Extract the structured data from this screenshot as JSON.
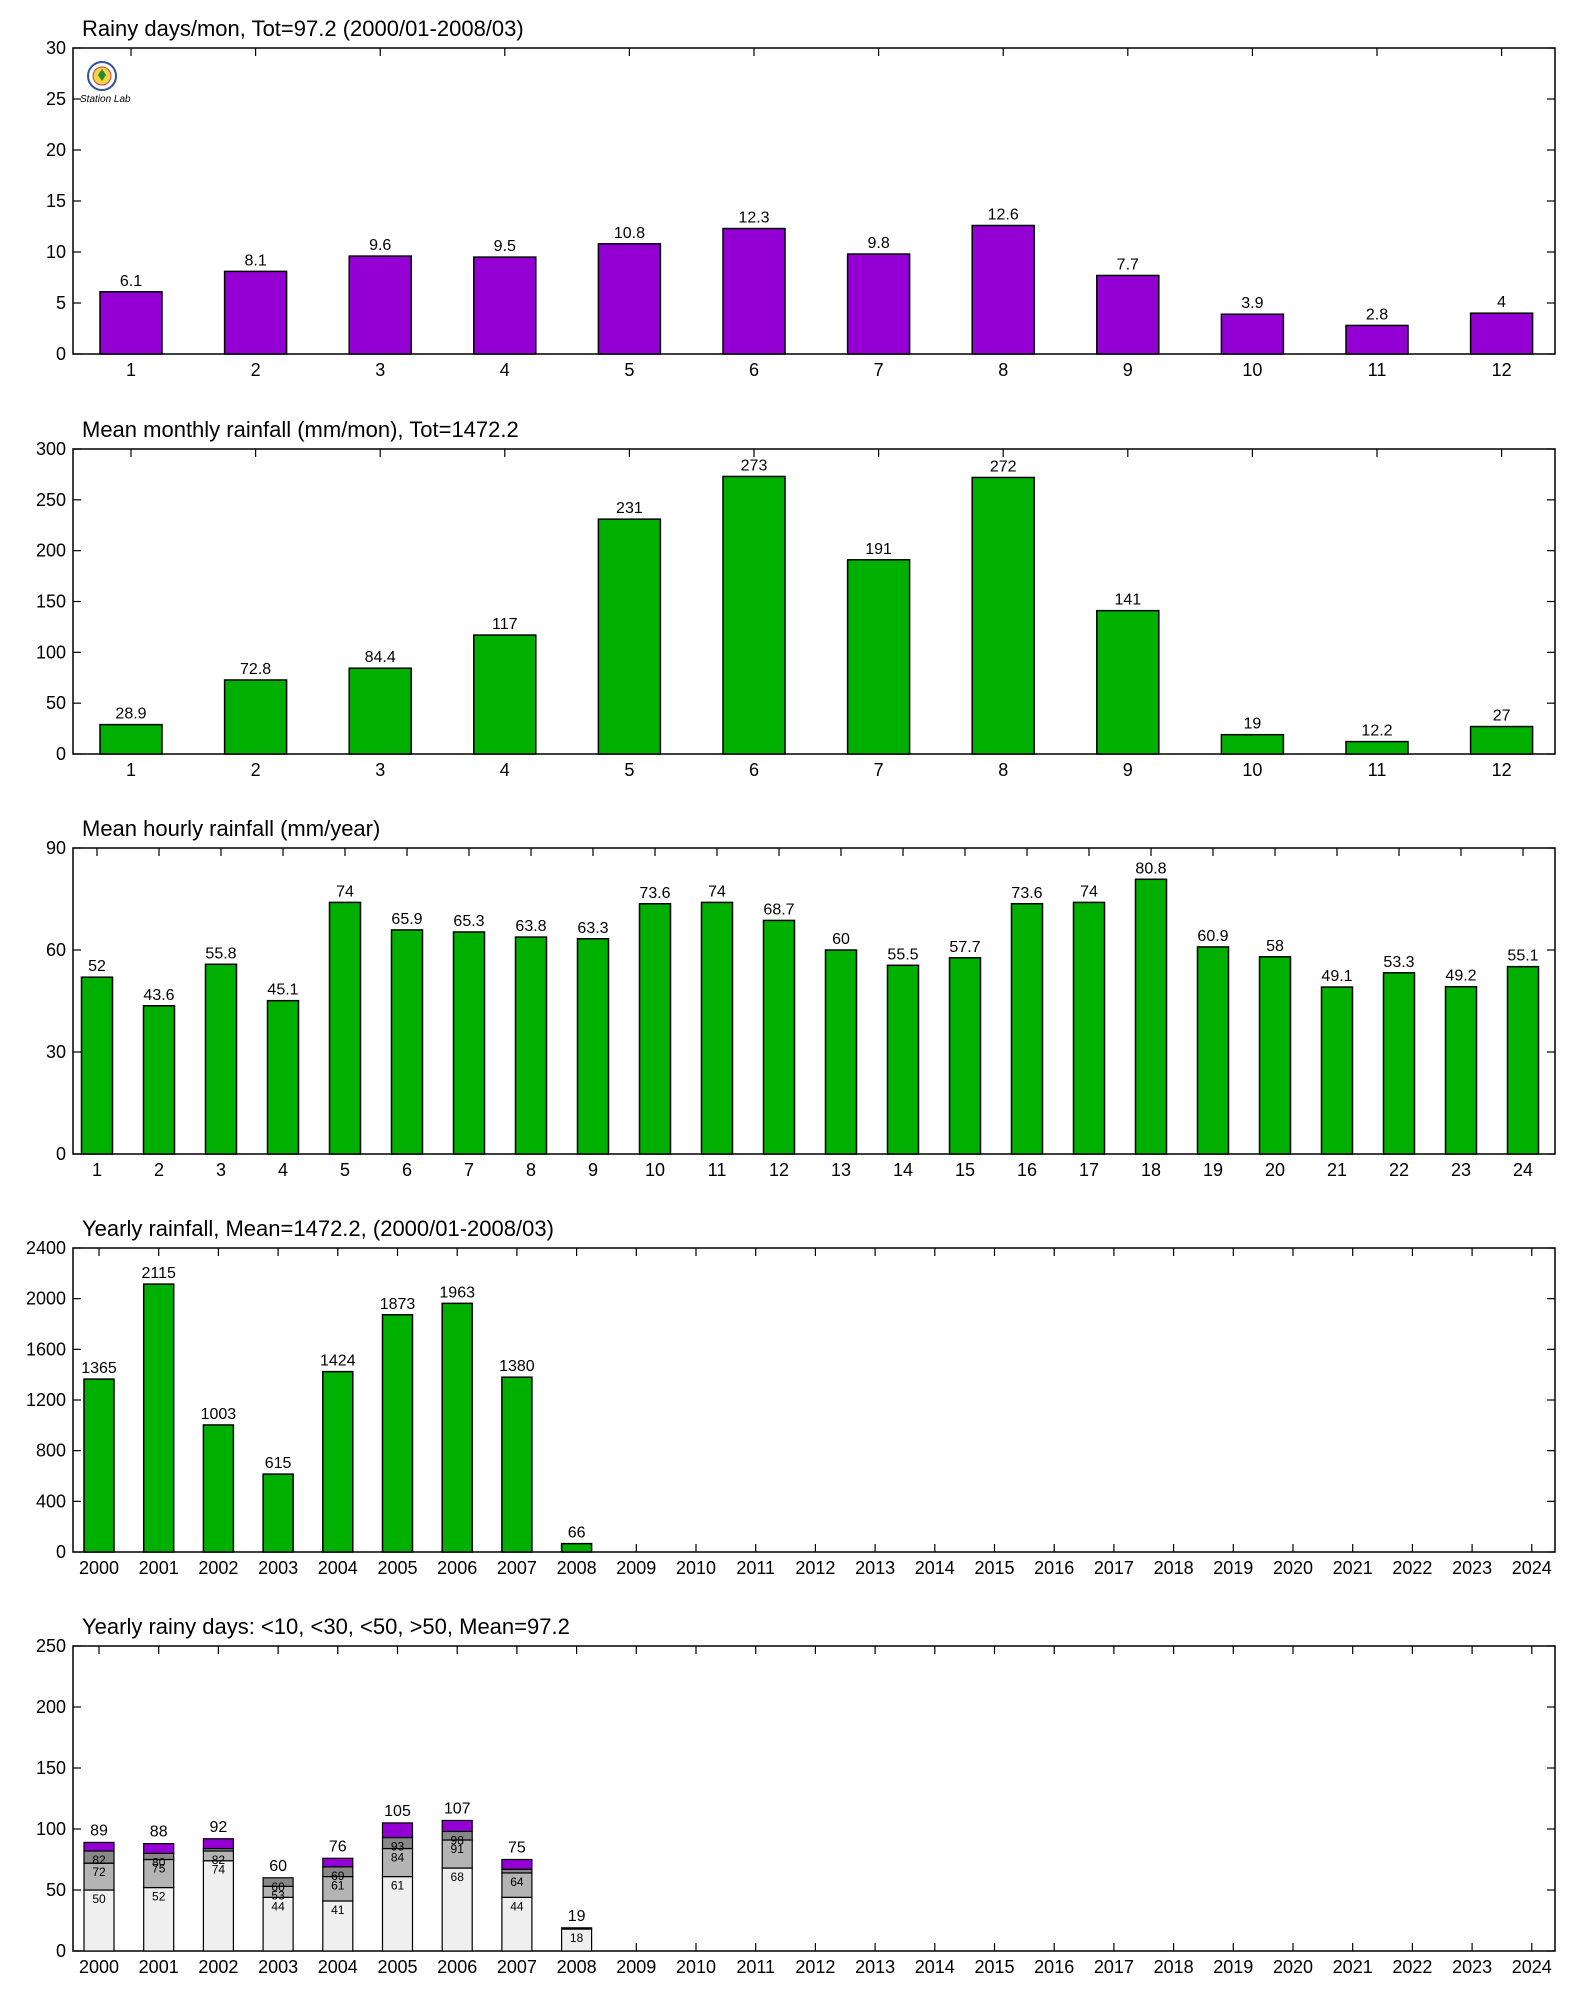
{
  "colors": {
    "purple": "#9400d3",
    "green": "#00b000",
    "lightgray": "#efefef",
    "midgray": "#b4b4b4",
    "darkgray": "#888888"
  },
  "logo": {
    "text": "Station Lab"
  },
  "chart_data": [
    {
      "type": "bar",
      "title": "Rainy days/mon, Tot=97.2 (2000/01-2008/03)",
      "categories": [
        "1",
        "2",
        "3",
        "4",
        "5",
        "6",
        "7",
        "8",
        "9",
        "10",
        "11",
        "12"
      ],
      "values": [
        6.1,
        8.1,
        9.6,
        9.5,
        10.8,
        12.3,
        9.8,
        12.6,
        7.7,
        3.9,
        2.8,
        4
      ],
      "labels": [
        "6.1",
        "8.1",
        "9.6",
        "9.5",
        "10.8",
        "12.3",
        "9.8",
        "12.6",
        "7.7",
        "3.9",
        "2.8",
        "4"
      ],
      "ylim": [
        0,
        30
      ],
      "yticks": [
        0,
        5,
        10,
        15,
        20,
        25,
        30
      ],
      "color": "purple"
    },
    {
      "type": "bar",
      "title": "Mean monthly rainfall (mm/mon), Tot=1472.2",
      "categories": [
        "1",
        "2",
        "3",
        "4",
        "5",
        "6",
        "7",
        "8",
        "9",
        "10",
        "11",
        "12"
      ],
      "values": [
        28.9,
        72.8,
        84.4,
        117,
        231,
        273,
        191,
        272,
        141,
        19,
        12.2,
        27
      ],
      "labels": [
        "28.9",
        "72.8",
        "84.4",
        "117",
        "231",
        "273",
        "191",
        "272",
        "141",
        "19",
        "12.2",
        "27"
      ],
      "ylim": [
        0,
        300
      ],
      "yticks": [
        0,
        50,
        100,
        150,
        200,
        250,
        300
      ],
      "color": "green"
    },
    {
      "type": "bar",
      "title": "Mean hourly rainfall (mm/year)",
      "categories": [
        "1",
        "2",
        "3",
        "4",
        "5",
        "6",
        "7",
        "8",
        "9",
        "10",
        "11",
        "12",
        "13",
        "14",
        "15",
        "16",
        "17",
        "18",
        "19",
        "20",
        "21",
        "22",
        "23",
        "24"
      ],
      "values": [
        52,
        43.6,
        55.8,
        45.1,
        74,
        65.9,
        65.3,
        63.8,
        63.3,
        73.6,
        74,
        68.7,
        60,
        55.5,
        57.7,
        73.6,
        74,
        80.8,
        60.9,
        58,
        49.1,
        53.3,
        49.2,
        55.1
      ],
      "labels": [
        "52",
        "43.6",
        "55.8",
        "45.1",
        "74",
        "65.9",
        "65.3",
        "63.8",
        "63.3",
        "73.6",
        "74",
        "68.7",
        "60",
        "55.5",
        "57.7",
        "73.6",
        "74",
        "80.8",
        "60.9",
        "58",
        "49.1",
        "53.3",
        "49.2",
        "55.1"
      ],
      "ylim": [
        0,
        90
      ],
      "yticks": [
        0,
        30,
        60,
        90
      ],
      "color": "green"
    },
    {
      "type": "bar",
      "title": "Yearly rainfall, Mean=1472.2, (2000/01-2008/03)",
      "categories": [
        "2000",
        "2001",
        "2002",
        "2003",
        "2004",
        "2005",
        "2006",
        "2007",
        "2008",
        "2009",
        "2010",
        "2011",
        "2012",
        "2013",
        "2014",
        "2015",
        "2016",
        "2017",
        "2018",
        "2019",
        "2020",
        "2021",
        "2022",
        "2023",
        "2024"
      ],
      "values": [
        1365,
        2115,
        1003,
        615,
        1424,
        1873,
        1963,
        1380,
        66
      ],
      "labels": [
        "1365",
        "2115",
        "1003",
        "615",
        "1424",
        "1873",
        "1963",
        "1380",
        "66"
      ],
      "ylim": [
        0,
        2400
      ],
      "yticks": [
        0,
        400,
        800,
        1200,
        1600,
        2000,
        2400
      ],
      "color": "green"
    },
    {
      "type": "bar",
      "stacked": true,
      "title": "Yearly rainy days: <10, <30, <50, >50, Mean=97.2",
      "categories": [
        "2000",
        "2001",
        "2002",
        "2003",
        "2004",
        "2005",
        "2006",
        "2007",
        "2008",
        "2009",
        "2010",
        "2011",
        "2012",
        "2013",
        "2014",
        "2015",
        "2016",
        "2017",
        "2018",
        "2019",
        "2020",
        "2021",
        "2022",
        "2023",
        "2024"
      ],
      "cumulative": [
        [
          50,
          72,
          82,
          89
        ],
        [
          52,
          75,
          80,
          88
        ],
        [
          74,
          82,
          84,
          92
        ],
        [
          44,
          53,
          60,
          60
        ],
        [
          41,
          61,
          69,
          76
        ],
        [
          61,
          84,
          93,
          105
        ],
        [
          68,
          91,
          98,
          107
        ],
        [
          44,
          64,
          67,
          75
        ],
        [
          18,
          18,
          18,
          19
        ]
      ],
      "totals": [
        "89",
        "88",
        "92",
        "60",
        "76",
        "105",
        "107",
        "75",
        "19"
      ],
      "segment_labels": [
        [
          "50",
          "72",
          "82"
        ],
        [
          "52",
          "75",
          "80"
        ],
        [
          "74",
          "82",
          ""
        ],
        [
          "44",
          "53",
          "60"
        ],
        [
          "41",
          "61",
          "69"
        ],
        [
          "61",
          "84",
          "93"
        ],
        [
          "68",
          "91",
          "98"
        ],
        [
          "44",
          "64",
          ""
        ],
        [
          "18",
          "",
          ""
        ]
      ],
      "ylim": [
        0,
        250
      ],
      "yticks": [
        0,
        50,
        100,
        150,
        200,
        250
      ],
      "segment_colors": [
        "lightgray",
        "midgray",
        "darkgray",
        "purple"
      ]
    }
  ]
}
